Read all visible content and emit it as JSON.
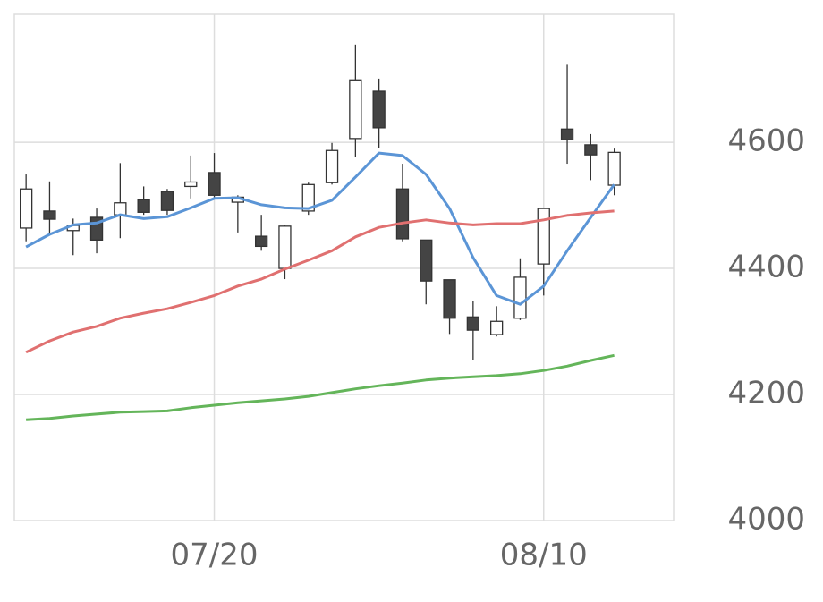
{
  "chart_data": {
    "type": "candlestick",
    "categories": [
      null,
      null,
      null,
      null,
      null,
      null,
      null,
      null,
      "07/20",
      null,
      null,
      null,
      null,
      null,
      null,
      null,
      null,
      null,
      null,
      null,
      null,
      null,
      "08/10",
      null,
      null,
      null
    ],
    "open": [
      4464,
      4491,
      4460,
      4481,
      4485,
      4509,
      4522,
      4530,
      4552,
      4505,
      4451,
      4400,
      4491,
      4536,
      4606,
      4681,
      4526,
      4445,
      4382,
      4323,
      4295,
      4321,
      4407,
      4621,
      4596,
      4532
    ],
    "high": [
      4549,
      4538,
      4479,
      4495,
      4567,
      4530,
      4526,
      4579,
      4583,
      4516,
      4485,
      4468,
      4536,
      4599,
      4755,
      4701,
      4566,
      4445,
      4382,
      4349,
      4340,
      4416,
      4495,
      4723,
      4613,
      4590
    ],
    "low": [
      4443,
      4454,
      4421,
      4424,
      4448,
      4485,
      4485,
      4511,
      4511,
      4457,
      4428,
      4383,
      4485,
      4533,
      4577,
      4591,
      4443,
      4343,
      4296,
      4254,
      4292,
      4318,
      4357,
      4566,
      4540,
      4516
    ],
    "close": [
      4526,
      4478,
      4468,
      4445,
      4504,
      4489,
      4492,
      4537,
      4516,
      4513,
      4435,
      4467,
      4533,
      4587,
      4699,
      4623,
      4447,
      4380,
      4321,
      4302,
      4316,
      4386,
      4495,
      4604,
      4580,
      4584
    ],
    "up_color": "#ffffff",
    "down_color": "#444444",
    "series": [
      {
        "color": "#5b95d6",
        "values": [
          4434,
          4454,
          4469,
          4472,
          4485,
          4479,
          4482,
          4496,
          4511,
          4512,
          4501,
          4496,
          4495,
          4508,
          4545,
          4583,
          4579,
          4549,
          4495,
          4417,
          4357,
          4343,
          4372,
          4428,
          4481,
          4533
        ]
      },
      {
        "color": "#e07070",
        "values": [
          4267,
          4285,
          4299,
          4308,
          4321,
          4329,
          4336,
          4346,
          4357,
          4372,
          4383,
          4399,
          4413,
          4428,
          4450,
          4465,
          4472,
          4477,
          4472,
          4469,
          4471,
          4471,
          4477,
          4484,
          4488,
          4491
        ]
      },
      {
        "color": "#64b55a",
        "values": [
          4160,
          4162,
          4166,
          4169,
          4172,
          4173,
          4174,
          4179,
          4183,
          4187,
          4190,
          4193,
          4197,
          4203,
          4209,
          4214,
          4218,
          4223,
          4226,
          4228,
          4230,
          4233,
          4238,
          4245,
          4254,
          4262
        ]
      }
    ],
    "ylim": [
      4000,
      4803
    ],
    "yticks": [
      4000,
      4200,
      4400,
      4600
    ],
    "grid": true
  }
}
